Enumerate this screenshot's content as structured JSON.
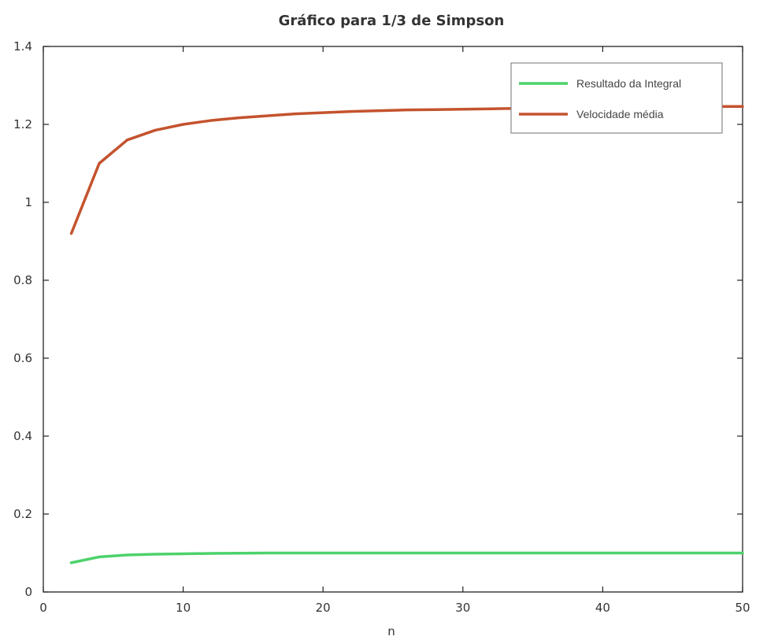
{
  "chart_data": {
    "type": "line",
    "title": "Gráfico para 1/3 de Simpson",
    "xlabel": "n",
    "ylabel": "",
    "xlim": [
      0,
      50
    ],
    "ylim": [
      0,
      1.4
    ],
    "xticks": [
      0,
      10,
      20,
      30,
      40,
      50
    ],
    "xtick_labels": [
      "0",
      "10",
      "20",
      "30",
      "40",
      "50"
    ],
    "yticks": [
      0,
      0.2,
      0.4,
      0.6,
      0.8,
      1,
      1.2,
      1.4
    ],
    "ytick_labels": [
      "0",
      "0.2",
      "0.4",
      "0.6",
      "0.8",
      "1",
      "1.2",
      "1.4"
    ],
    "grid": false,
    "legend_position": "top-right",
    "x": [
      2,
      4,
      6,
      8,
      10,
      12,
      14,
      16,
      18,
      20,
      22,
      24,
      26,
      28,
      30,
      32,
      34,
      36,
      38,
      40,
      42,
      44,
      46,
      48,
      50
    ],
    "series": [
      {
        "name": "Resultado da Integral",
        "color": "#4cd26b",
        "values": [
          0.075,
          0.09,
          0.095,
          0.097,
          0.098,
          0.099,
          0.0995,
          0.1,
          0.1,
          0.1,
          0.1,
          0.1,
          0.1,
          0.1,
          0.1,
          0.1,
          0.1,
          0.1,
          0.1,
          0.1,
          0.1,
          0.1,
          0.1,
          0.1,
          0.1
        ]
      },
      {
        "name": "Velocidade média",
        "color": "#c4532e",
        "values": [
          0.92,
          1.1,
          1.16,
          1.185,
          1.2,
          1.21,
          1.217,
          1.222,
          1.227,
          1.23,
          1.233,
          1.235,
          1.237,
          1.238,
          1.239,
          1.24,
          1.241,
          1.242,
          1.243,
          1.244,
          1.244,
          1.245,
          1.245,
          1.246,
          1.246
        ]
      }
    ]
  }
}
